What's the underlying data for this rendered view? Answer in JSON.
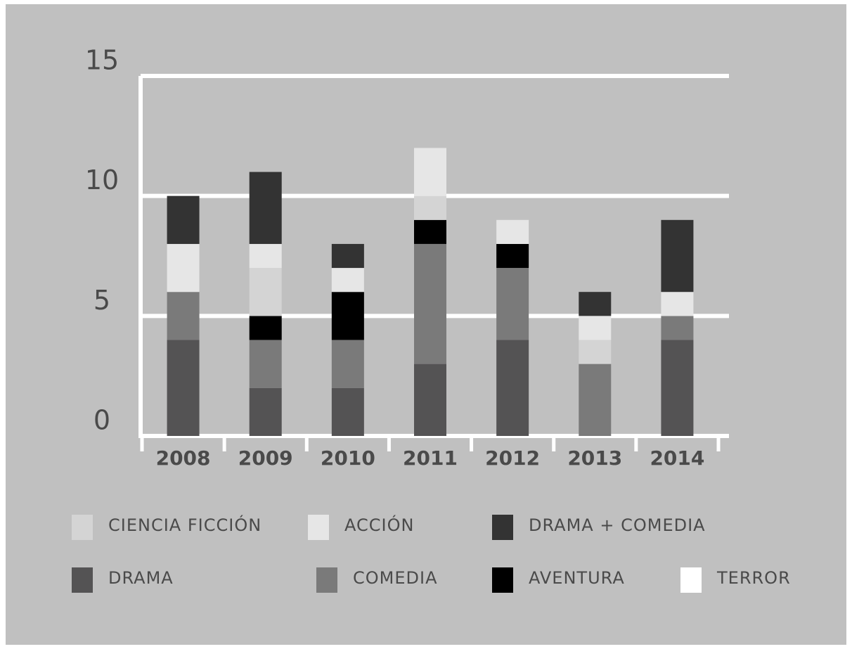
{
  "chart_data": {
    "type": "stacked_bar",
    "categories": [
      "2008",
      "2009",
      "2010",
      "2011",
      "2012",
      "2013",
      "2014"
    ],
    "series": [
      {
        "name": "DRAMA",
        "color": "#545354",
        "values": [
          4,
          2,
          2,
          3,
          4,
          0,
          4
        ]
      },
      {
        "name": "COMEDIA",
        "color": "#7a7a7a",
        "values": [
          2,
          2,
          2,
          5,
          3,
          3,
          1
        ]
      },
      {
        "name": "AVENTURA",
        "color": "#000000",
        "values": [
          0,
          1,
          2,
          1,
          1,
          0,
          0
        ]
      },
      {
        "name": "CIENCIA FICCIÓN",
        "color": "#d4d4d4",
        "values": [
          0,
          2,
          0,
          1,
          0,
          1,
          0
        ]
      },
      {
        "name": "ACCIÓN",
        "color": "#e6e6e6",
        "values": [
          2,
          1,
          1,
          2,
          1,
          1,
          1
        ]
      },
      {
        "name": "DRAMA + COMEDIA",
        "color": "#333333",
        "values": [
          2,
          3,
          1,
          0,
          0,
          1,
          3
        ]
      },
      {
        "name": "TERROR",
        "color": "#ffffff",
        "values": [
          0,
          0,
          0,
          0,
          0,
          0,
          0
        ]
      }
    ],
    "ylim": [
      0,
      15
    ],
    "yticks": [
      0,
      5,
      10,
      15
    ],
    "grid": true
  }
}
